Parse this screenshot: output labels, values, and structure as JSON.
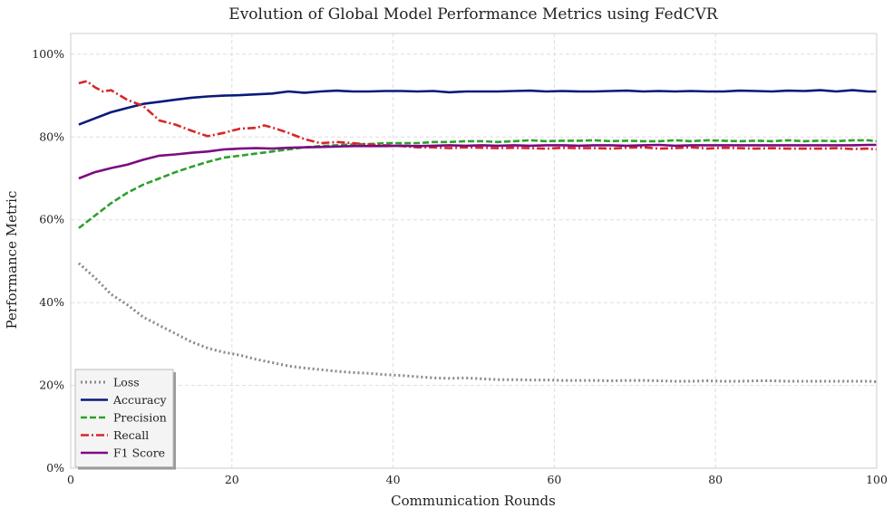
{
  "chart_data": {
    "type": "line",
    "title": "Evolution of Global Model Performance Metrics using FedCVR",
    "xlabel": "Communication Rounds",
    "ylabel": "Performance Metric",
    "xlim": [
      0,
      100
    ],
    "ylim": [
      0,
      105
    ],
    "x_ticks": [
      0,
      20,
      40,
      60,
      80,
      100
    ],
    "y_ticks": [
      0,
      20,
      40,
      60,
      80,
      100
    ],
    "y_tick_suffix": "%",
    "grid": true,
    "legend_position": "lower-left",
    "series": [
      {
        "name": "Loss",
        "color": "#888888",
        "style": "dotted",
        "points": [
          [
            1,
            49.5
          ],
          [
            3,
            46
          ],
          [
            5,
            42
          ],
          [
            7,
            39.5
          ],
          [
            9,
            36.5
          ],
          [
            11,
            34.5
          ],
          [
            13,
            32.5
          ],
          [
            15,
            30.5
          ],
          [
            17,
            29
          ],
          [
            19,
            28
          ],
          [
            21,
            27.3
          ],
          [
            23,
            26.3
          ],
          [
            25,
            25.5
          ],
          [
            27,
            24.7
          ],
          [
            29,
            24.2
          ],
          [
            31,
            23.8
          ],
          [
            33,
            23.4
          ],
          [
            35,
            23.1
          ],
          [
            37,
            22.9
          ],
          [
            39,
            22.6
          ],
          [
            41,
            22.4
          ],
          [
            43,
            22.1
          ],
          [
            45,
            21.8
          ],
          [
            47,
            21.7
          ],
          [
            49,
            21.8
          ],
          [
            51,
            21.6
          ],
          [
            53,
            21.4
          ],
          [
            55,
            21.4
          ],
          [
            57,
            21.3
          ],
          [
            59,
            21.3
          ],
          [
            61,
            21.2
          ],
          [
            63,
            21.2
          ],
          [
            65,
            21.2
          ],
          [
            67,
            21.1
          ],
          [
            69,
            21.2
          ],
          [
            71,
            21.2
          ],
          [
            73,
            21.1
          ],
          [
            75,
            21
          ],
          [
            77,
            21
          ],
          [
            79,
            21.1
          ],
          [
            81,
            21
          ],
          [
            83,
            21
          ],
          [
            85,
            21.1
          ],
          [
            87,
            21.1
          ],
          [
            89,
            21
          ],
          [
            91,
            21
          ],
          [
            93,
            21
          ],
          [
            95,
            21
          ],
          [
            97,
            21
          ],
          [
            99,
            21
          ],
          [
            100,
            20.9
          ]
        ]
      },
      {
        "name": "Accuracy",
        "color": "#0a1a7a",
        "style": "solid",
        "points": [
          [
            1,
            83
          ],
          [
            3,
            84.5
          ],
          [
            5,
            86
          ],
          [
            7,
            87
          ],
          [
            9,
            88
          ],
          [
            11,
            88.5
          ],
          [
            13,
            89
          ],
          [
            15,
            89.5
          ],
          [
            17,
            89.8
          ],
          [
            19,
            90
          ],
          [
            21,
            90.1
          ],
          [
            23,
            90.3
          ],
          [
            25,
            90.5
          ],
          [
            27,
            91
          ],
          [
            29,
            90.7
          ],
          [
            31,
            91
          ],
          [
            33,
            91.2
          ],
          [
            35,
            91
          ],
          [
            37,
            91
          ],
          [
            39,
            91.1
          ],
          [
            41,
            91.1
          ],
          [
            43,
            91
          ],
          [
            45,
            91.1
          ],
          [
            47,
            90.8
          ],
          [
            49,
            91
          ],
          [
            51,
            91
          ],
          [
            53,
            91
          ],
          [
            55,
            91.1
          ],
          [
            57,
            91.2
          ],
          [
            59,
            91
          ],
          [
            61,
            91.1
          ],
          [
            63,
            91
          ],
          [
            65,
            91
          ],
          [
            67,
            91.1
          ],
          [
            69,
            91.2
          ],
          [
            71,
            91
          ],
          [
            73,
            91.1
          ],
          [
            75,
            91
          ],
          [
            77,
            91.1
          ],
          [
            79,
            91
          ],
          [
            81,
            91
          ],
          [
            83,
            91.2
          ],
          [
            85,
            91.1
          ],
          [
            87,
            91
          ],
          [
            89,
            91.2
          ],
          [
            91,
            91.1
          ],
          [
            93,
            91.3
          ],
          [
            95,
            91
          ],
          [
            97,
            91.3
          ],
          [
            99,
            91
          ],
          [
            100,
            91
          ]
        ]
      },
      {
        "name": "Precision",
        "color": "#2ca02c",
        "style": "dashed",
        "points": [
          [
            1,
            58
          ],
          [
            3,
            61
          ],
          [
            5,
            64
          ],
          [
            7,
            66.5
          ],
          [
            9,
            68.5
          ],
          [
            11,
            70
          ],
          [
            13,
            71.5
          ],
          [
            15,
            72.8
          ],
          [
            17,
            74
          ],
          [
            19,
            75
          ],
          [
            21,
            75.5
          ],
          [
            23,
            76
          ],
          [
            25,
            76.5
          ],
          [
            27,
            77
          ],
          [
            29,
            77.5
          ],
          [
            31,
            77.8
          ],
          [
            33,
            78
          ],
          [
            35,
            78.2
          ],
          [
            37,
            78.3
          ],
          [
            39,
            78.5
          ],
          [
            41,
            78.5
          ],
          [
            43,
            78.5
          ],
          [
            45,
            78.8
          ],
          [
            47,
            78.8
          ],
          [
            49,
            79
          ],
          [
            51,
            79
          ],
          [
            53,
            78.8
          ],
          [
            55,
            79
          ],
          [
            57,
            79.2
          ],
          [
            59,
            79
          ],
          [
            61,
            79.1
          ],
          [
            63,
            79.1
          ],
          [
            65,
            79.2
          ],
          [
            67,
            79
          ],
          [
            69,
            79.1
          ],
          [
            71,
            79
          ],
          [
            73,
            79
          ],
          [
            75,
            79.2
          ],
          [
            77,
            79
          ],
          [
            79,
            79.2
          ],
          [
            81,
            79.1
          ],
          [
            83,
            79
          ],
          [
            85,
            79.1
          ],
          [
            87,
            79
          ],
          [
            89,
            79.2
          ],
          [
            91,
            79
          ],
          [
            93,
            79.1
          ],
          [
            95,
            79
          ],
          [
            97,
            79.2
          ],
          [
            99,
            79.2
          ],
          [
            100,
            79
          ]
        ]
      },
      {
        "name": "Recall",
        "color": "#d62728",
        "style": "dashdot",
        "points": [
          [
            1,
            93
          ],
          [
            2,
            93.5
          ],
          [
            3,
            92
          ],
          [
            4,
            91
          ],
          [
            5,
            91.3
          ],
          [
            7,
            89
          ],
          [
            9,
            87.5
          ],
          [
            11,
            84
          ],
          [
            13,
            83
          ],
          [
            15,
            81.5
          ],
          [
            17,
            80.2
          ],
          [
            19,
            81
          ],
          [
            21,
            82
          ],
          [
            23,
            82.2
          ],
          [
            24,
            82.8
          ],
          [
            25,
            82.3
          ],
          [
            27,
            81
          ],
          [
            29,
            79.5
          ],
          [
            31,
            78.5
          ],
          [
            33,
            78.8
          ],
          [
            35,
            78.5
          ],
          [
            37,
            78.2
          ],
          [
            39,
            78
          ],
          [
            41,
            77.8
          ],
          [
            43,
            77.5
          ],
          [
            45,
            77.5
          ],
          [
            47,
            77.3
          ],
          [
            49,
            77.5
          ],
          [
            51,
            77.4
          ],
          [
            53,
            77.3
          ],
          [
            55,
            77.4
          ],
          [
            57,
            77.3
          ],
          [
            59,
            77.2
          ],
          [
            61,
            77.4
          ],
          [
            63,
            77.3
          ],
          [
            65,
            77.3
          ],
          [
            67,
            77.2
          ],
          [
            69,
            77.4
          ],
          [
            71,
            77.5
          ],
          [
            73,
            77.2
          ],
          [
            75,
            77.3
          ],
          [
            77,
            77.5
          ],
          [
            79,
            77.2
          ],
          [
            81,
            77.4
          ],
          [
            83,
            77.3
          ],
          [
            85,
            77.2
          ],
          [
            87,
            77.3
          ],
          [
            89,
            77.2
          ],
          [
            91,
            77.2
          ],
          [
            93,
            77.2
          ],
          [
            95,
            77.3
          ],
          [
            97,
            77.1
          ],
          [
            99,
            77.2
          ],
          [
            100,
            77
          ]
        ]
      },
      {
        "name": "F1 Score",
        "color": "#7b0a82",
        "style": "solid",
        "points": [
          [
            1,
            70
          ],
          [
            3,
            71.5
          ],
          [
            5,
            72.5
          ],
          [
            7,
            73.3
          ],
          [
            9,
            74.5
          ],
          [
            11,
            75.5
          ],
          [
            13,
            75.8
          ],
          [
            15,
            76.2
          ],
          [
            17,
            76.5
          ],
          [
            19,
            77
          ],
          [
            21,
            77.2
          ],
          [
            23,
            77.3
          ],
          [
            25,
            77.2
          ],
          [
            27,
            77.4
          ],
          [
            29,
            77.5
          ],
          [
            31,
            77.6
          ],
          [
            33,
            77.7
          ],
          [
            35,
            77.8
          ],
          [
            37,
            77.8
          ],
          [
            39,
            77.8
          ],
          [
            41,
            77.9
          ],
          [
            43,
            77.8
          ],
          [
            45,
            77.9
          ],
          [
            47,
            78
          ],
          [
            49,
            77.9
          ],
          [
            51,
            78
          ],
          [
            53,
            77.9
          ],
          [
            55,
            78
          ],
          [
            57,
            77.9
          ],
          [
            59,
            78
          ],
          [
            61,
            78
          ],
          [
            63,
            77.9
          ],
          [
            65,
            78
          ],
          [
            67,
            78
          ],
          [
            69,
            77.9
          ],
          [
            71,
            78
          ],
          [
            73,
            78.1
          ],
          [
            75,
            77.9
          ],
          [
            77,
            78
          ],
          [
            79,
            78
          ],
          [
            81,
            78
          ],
          [
            83,
            78
          ],
          [
            85,
            78
          ],
          [
            87,
            78
          ],
          [
            89,
            78
          ],
          [
            91,
            78
          ],
          [
            93,
            78
          ],
          [
            95,
            78
          ],
          [
            97,
            78
          ],
          [
            99,
            78.1
          ],
          [
            100,
            78.1
          ]
        ]
      }
    ]
  }
}
